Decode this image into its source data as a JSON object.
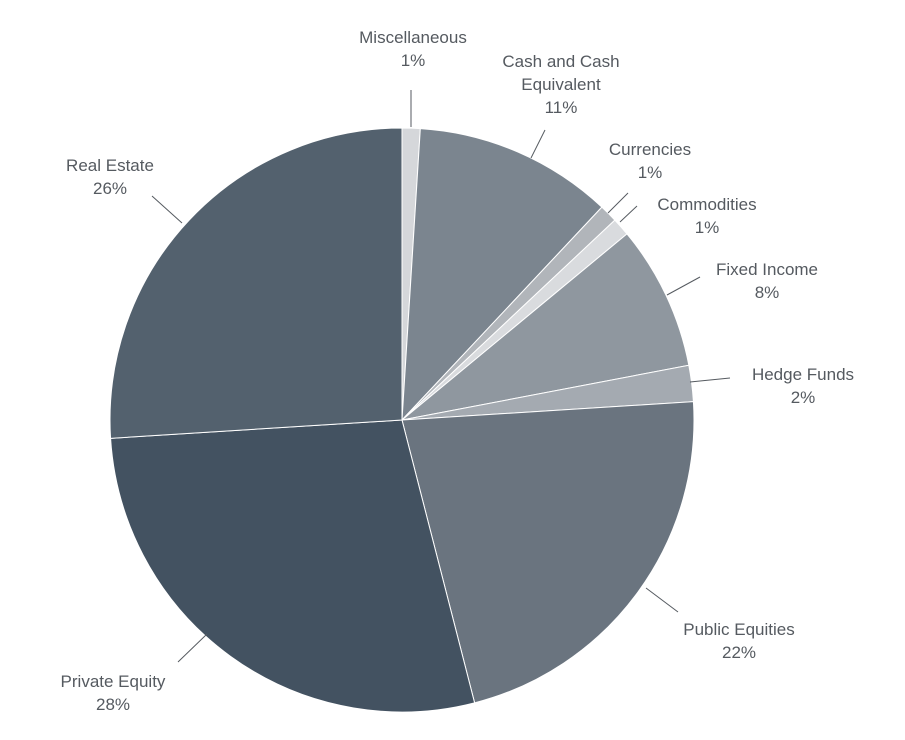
{
  "chart_data": {
    "type": "pie",
    "title": "",
    "start_angle_deg": 0,
    "direction": "clockwise",
    "slices": [
      {
        "name": "Miscellaneous",
        "label_lines": [
          "Miscellaneous"
        ],
        "value": 1,
        "value_label": "1%",
        "color": "#d5d7da"
      },
      {
        "name": "Cash and Cash Equivalent",
        "label_lines": [
          "Cash and Cash",
          "Equivalent"
        ],
        "value": 11,
        "value_label": "11%",
        "color": "#7b858f"
      },
      {
        "name": "Currencies",
        "label_lines": [
          "Currencies"
        ],
        "value": 1,
        "value_label": "1%",
        "color": "#b1b5ba"
      },
      {
        "name": "Commodities",
        "label_lines": [
          "Commodities"
        ],
        "value": 1,
        "value_label": "1%",
        "color": "#d9dbde"
      },
      {
        "name": "Fixed Income",
        "label_lines": [
          "Fixed Income"
        ],
        "value": 8,
        "value_label": "8%",
        "color": "#8f979f"
      },
      {
        "name": "Hedge Funds",
        "label_lines": [
          "Hedge Funds"
        ],
        "value": 2,
        "value_label": "2%",
        "color": "#a4aab1"
      },
      {
        "name": "Public Equities",
        "label_lines": [
          "Public Equities"
        ],
        "value": 22,
        "value_label": "22%",
        "color": "#6a747f"
      },
      {
        "name": "Private Equity",
        "label_lines": [
          "Private Equity"
        ],
        "value": 28,
        "value_label": "28%",
        "color": "#435261"
      },
      {
        "name": "Real Estate",
        "label_lines": [
          "Real Estate"
        ],
        "value": 26,
        "value_label": "26%",
        "color": "#53616e"
      }
    ]
  }
}
